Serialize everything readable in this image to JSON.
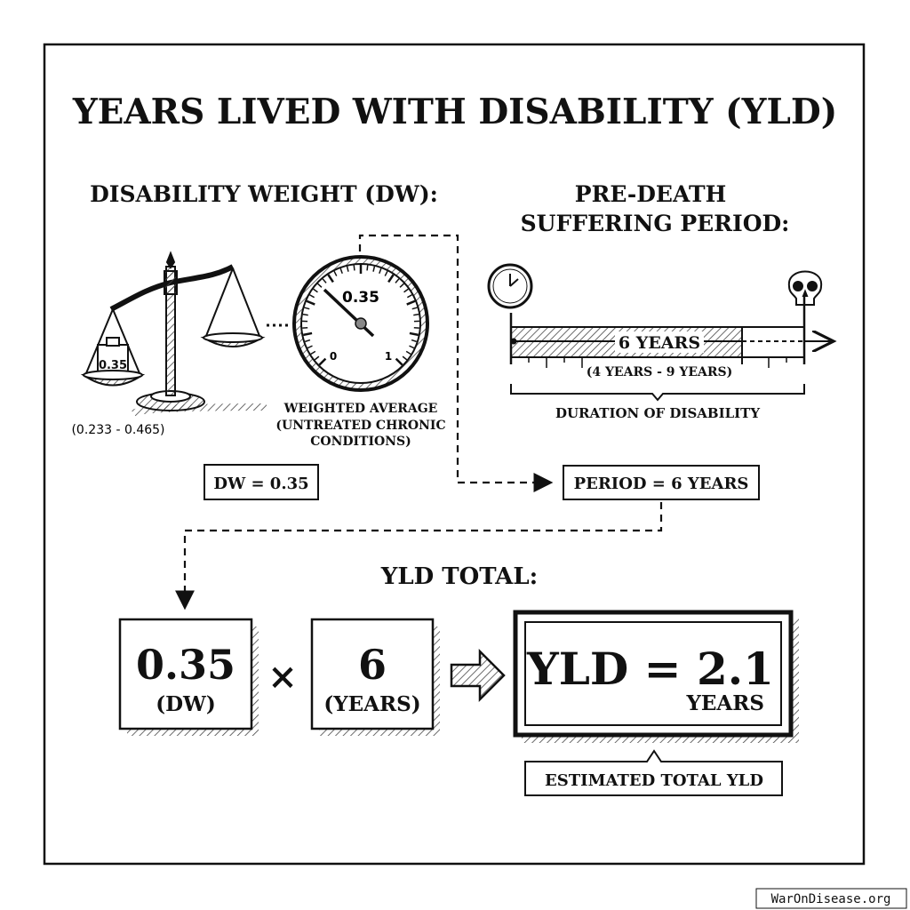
{
  "title": "YEARS LIVED WITH DISABILITY (YLD)",
  "dw_section": {
    "heading": "DISABILITY WEIGHT (DW):",
    "weight_label": "0.35",
    "range": "(0.233 - 0.465)",
    "gauge": {
      "value_label": "0.35",
      "min_label": "0",
      "max_label": "1",
      "value": 0.35
    },
    "gauge_caption": [
      "WEIGHTED AVERAGE",
      "(UNTREATED CHRONIC",
      "CONDITIONS)"
    ],
    "result_box": "DW = 0.35"
  },
  "period_section": {
    "heading_line1": "PRE-DEATH",
    "heading_line2": "SUFFERING PERIOD:",
    "bar_label": "6 YEARS",
    "range": "(4 YEARS - 9 YEARS)",
    "brace_label": "DURATION OF DISABILITY",
    "result_box": "PERIOD = 6 YEARS",
    "icons": [
      "clock-icon",
      "skull-icon"
    ]
  },
  "total_section": {
    "heading": "YLD TOTAL:",
    "factor1": {
      "value": "0.35",
      "unit": "(DW)"
    },
    "operator": "×",
    "factor2": {
      "value": "6",
      "unit": "(YEARS)"
    },
    "result": {
      "value": "YLD = 2.1",
      "unit": "YEARS"
    },
    "callout": "ESTIMATED TOTAL YLD"
  },
  "watermark": "WarOnDisease.org"
}
